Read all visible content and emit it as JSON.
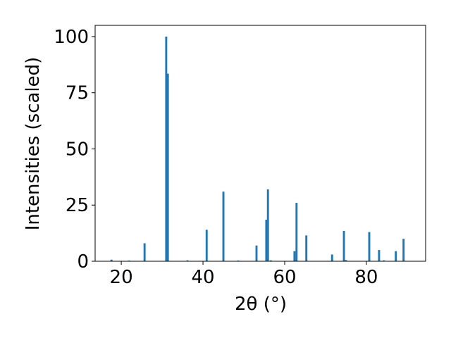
{
  "chart_data": {
    "type": "bar",
    "x_label": "2θ (°)",
    "y_label": "Intensities (scaled)",
    "x": [
      17.6,
      21.9,
      25.7,
      31.0,
      31.4,
      36.2,
      40.9,
      45.0,
      48.6,
      53.1,
      55.5,
      55.9,
      56.6,
      62.4,
      62.9,
      65.3,
      71.6,
      74.5,
      75.0,
      80.7,
      83.1,
      84.3,
      87.2,
      89.1
    ],
    "values": [
      0.7,
      0.3,
      8,
      100,
      83.5,
      0.4,
      14,
      31,
      0.3,
      7,
      18.5,
      32,
      0.4,
      4.5,
      26,
      11.5,
      3,
      13.5,
      0.5,
      13,
      5,
      0.4,
      4.5,
      10
    ],
    "color": "#1f77b4",
    "xlim": [
      13.6,
      94.5
    ],
    "xticks": [
      20,
      40,
      60,
      80
    ],
    "ylim": [
      0,
      105
    ],
    "yticks": [
      0,
      25,
      50,
      75,
      100
    ],
    "grid": false
  }
}
